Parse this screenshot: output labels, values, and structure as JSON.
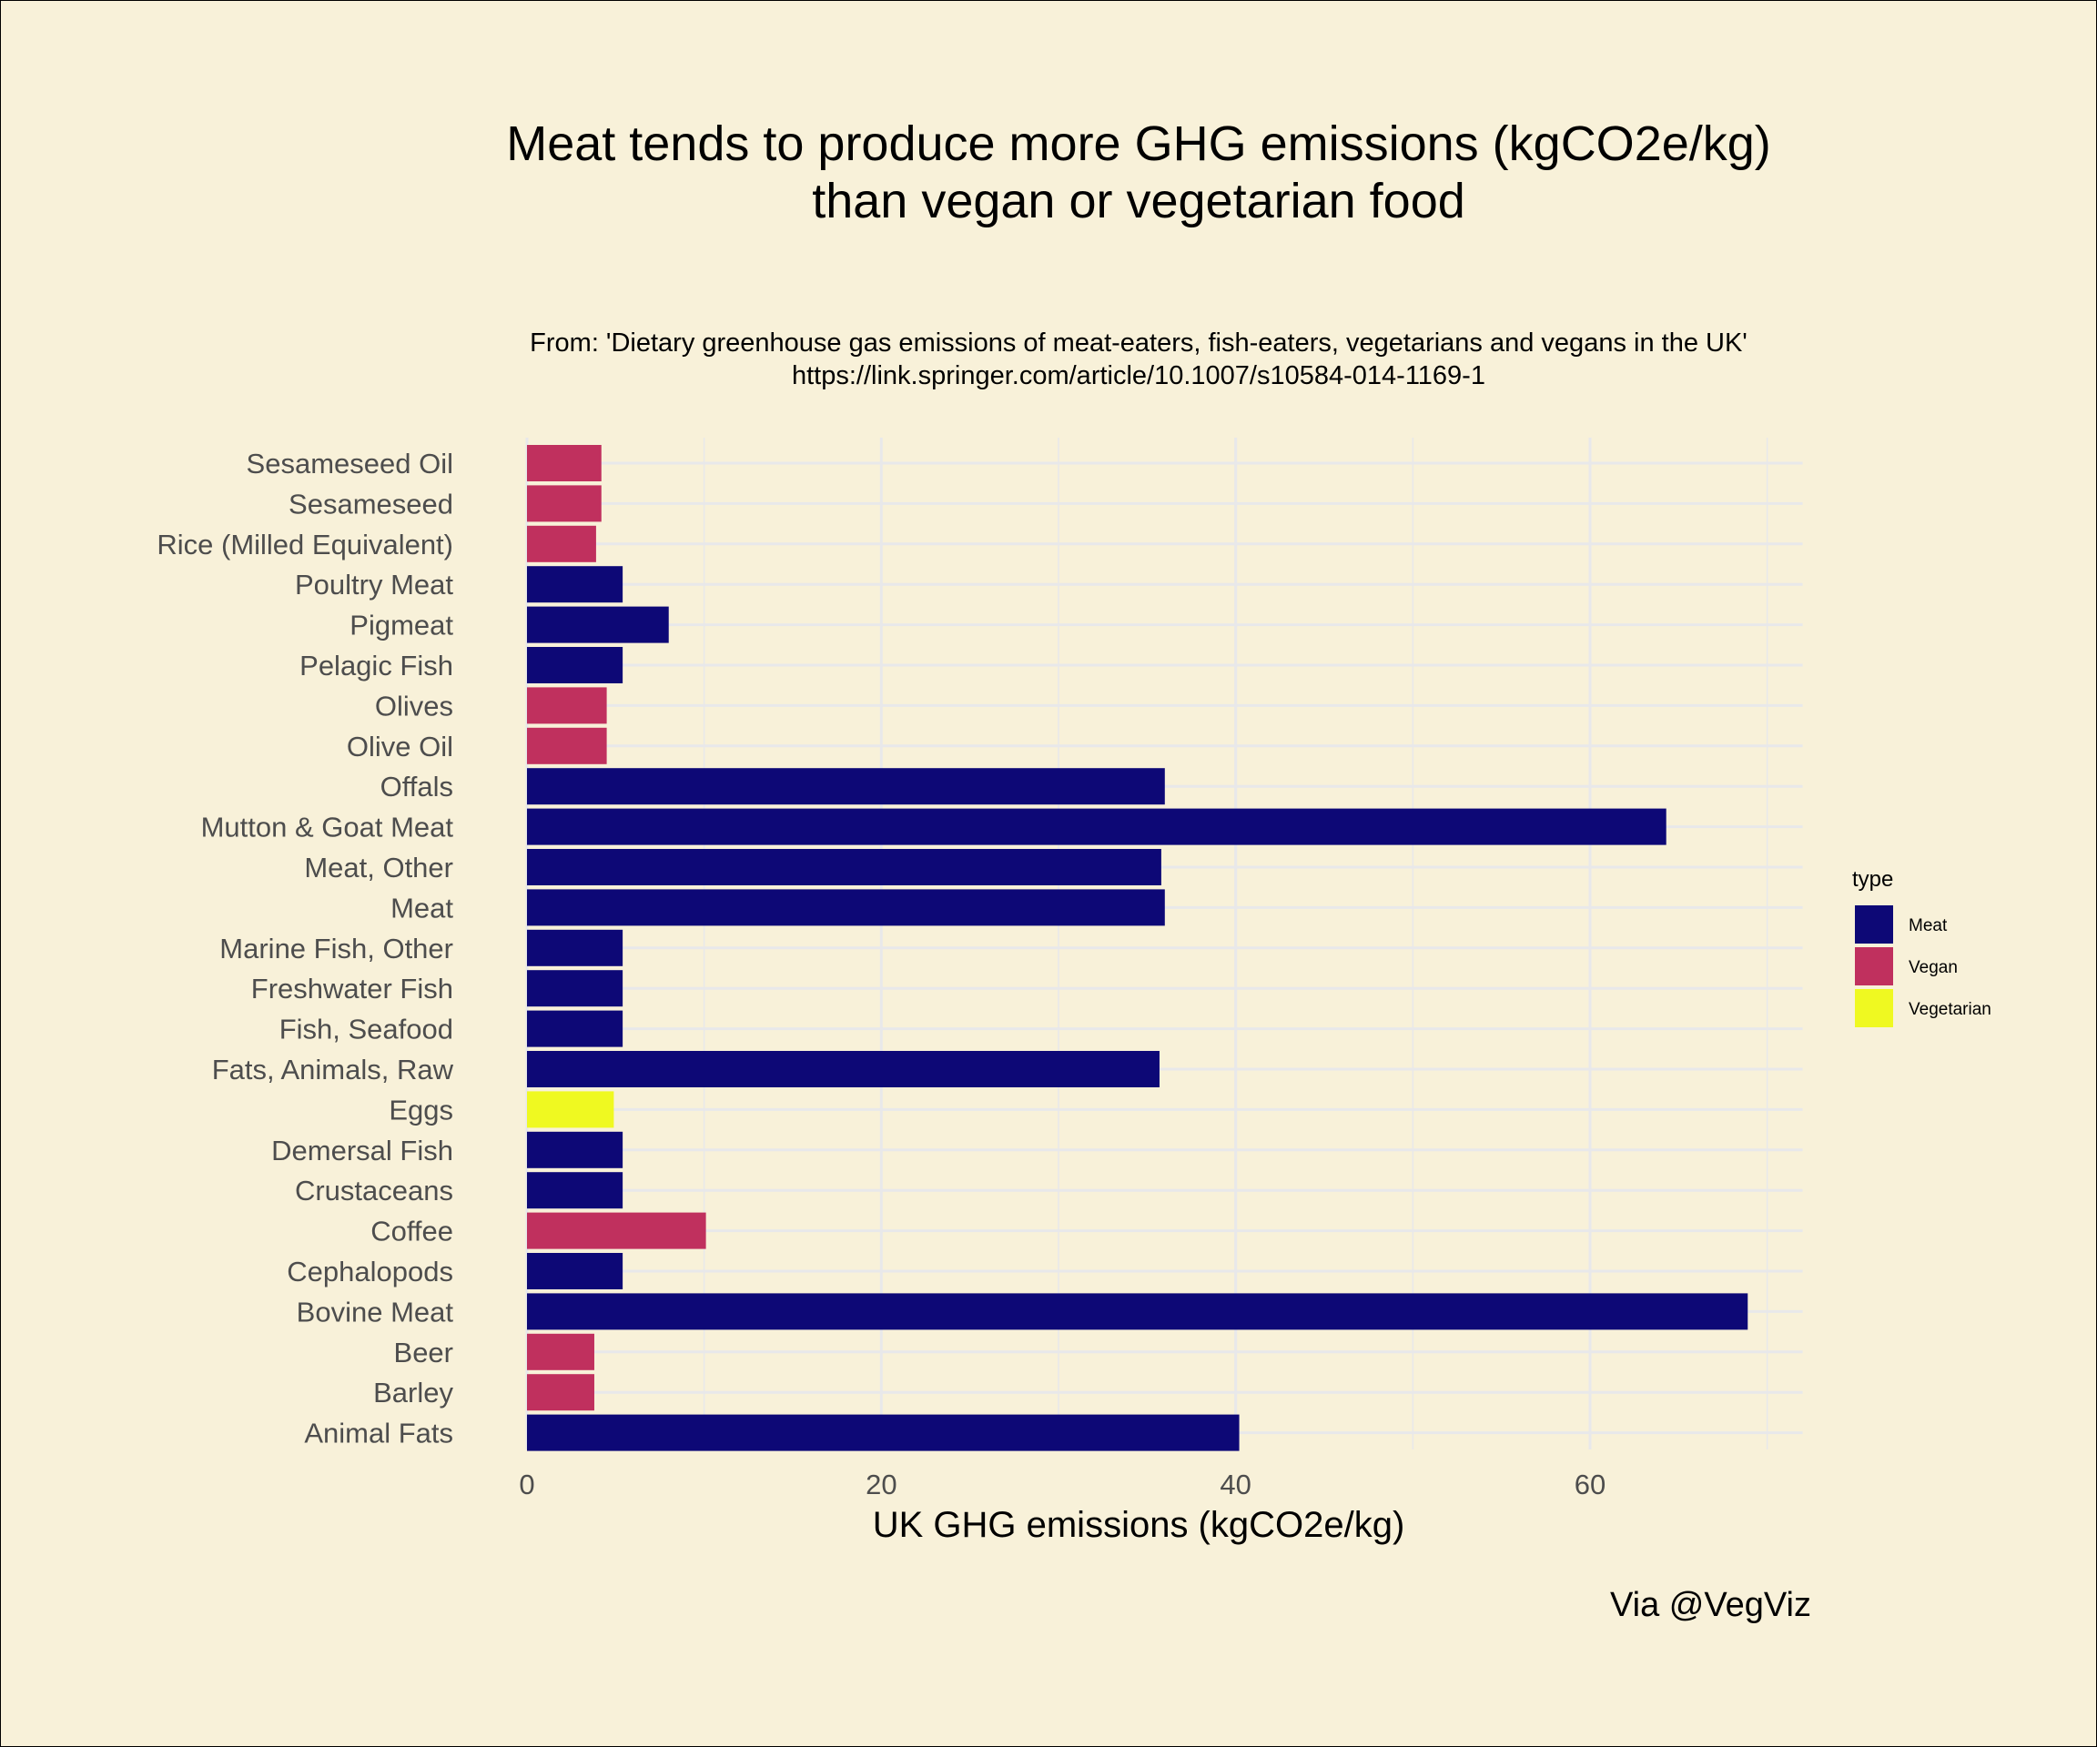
{
  "chart_data": {
    "type": "bar",
    "orientation": "horizontal",
    "title_lines": [
      "Meat tends to produce more GHG emissions (kgCO2e/kg)",
      "than vegan or vegetarian food"
    ],
    "subtitle_lines": [
      "From: 'Dietary greenhouse gas emissions of meat-eaters, fish-eaters, vegetarians and vegans in the UK'",
      "https://link.springer.com/article/10.1007/s10584-014-1169-1"
    ],
    "xlabel": "UK GHG emissions (kgCO2e/kg)",
    "ylabel": "",
    "xlim": [
      0,
      72
    ],
    "x_ticks": [
      0,
      20,
      40,
      60
    ],
    "grid": true,
    "legend": {
      "title": "type",
      "position": "right",
      "entries": [
        {
          "label": "Meat",
          "color": "#0D0876"
        },
        {
          "label": "Vegan",
          "color": "#C0305E"
        },
        {
          "label": "Vegetarian",
          "color": "#EFF921"
        }
      ]
    },
    "caption": "Via @VegViz",
    "bars": [
      {
        "category": "Sesameseed Oil",
        "value": 4.2,
        "type": "Vegan"
      },
      {
        "category": "Sesameseed",
        "value": 4.2,
        "type": "Vegan"
      },
      {
        "category": "Rice (Milled Equivalent)",
        "value": 3.9,
        "type": "Vegan"
      },
      {
        "category": "Poultry Meat",
        "value": 5.4,
        "type": "Meat"
      },
      {
        "category": "Pigmeat",
        "value": 8.0,
        "type": "Meat"
      },
      {
        "category": "Pelagic Fish",
        "value": 5.4,
        "type": "Meat"
      },
      {
        "category": "Olives",
        "value": 4.5,
        "type": "Vegan"
      },
      {
        "category": "Olive Oil",
        "value": 4.5,
        "type": "Vegan"
      },
      {
        "category": "Offals",
        "value": 36.0,
        "type": "Meat"
      },
      {
        "category": "Mutton & Goat Meat",
        "value": 64.3,
        "type": "Meat"
      },
      {
        "category": "Meat, Other",
        "value": 35.8,
        "type": "Meat"
      },
      {
        "category": "Meat",
        "value": 36.0,
        "type": "Meat"
      },
      {
        "category": "Marine Fish, Other",
        "value": 5.4,
        "type": "Meat"
      },
      {
        "category": "Freshwater Fish",
        "value": 5.4,
        "type": "Meat"
      },
      {
        "category": "Fish, Seafood",
        "value": 5.4,
        "type": "Meat"
      },
      {
        "category": "Fats, Animals, Raw",
        "value": 35.7,
        "type": "Meat"
      },
      {
        "category": "Eggs",
        "value": 4.9,
        "type": "Vegetarian"
      },
      {
        "category": "Demersal Fish",
        "value": 5.4,
        "type": "Meat"
      },
      {
        "category": "Crustaceans",
        "value": 5.4,
        "type": "Meat"
      },
      {
        "category": "Coffee",
        "value": 10.1,
        "type": "Vegan"
      },
      {
        "category": "Cephalopods",
        "value": 5.4,
        "type": "Meat"
      },
      {
        "category": "Bovine Meat",
        "value": 68.9,
        "type": "Meat"
      },
      {
        "category": "Beer",
        "value": 3.8,
        "type": "Vegan"
      },
      {
        "category": "Barley",
        "value": 3.8,
        "type": "Vegan"
      },
      {
        "category": "Animal Fats",
        "value": 40.2,
        "type": "Meat"
      }
    ]
  },
  "colors": {
    "background": "#F8F1D9",
    "grid": "#E8E8EA"
  }
}
